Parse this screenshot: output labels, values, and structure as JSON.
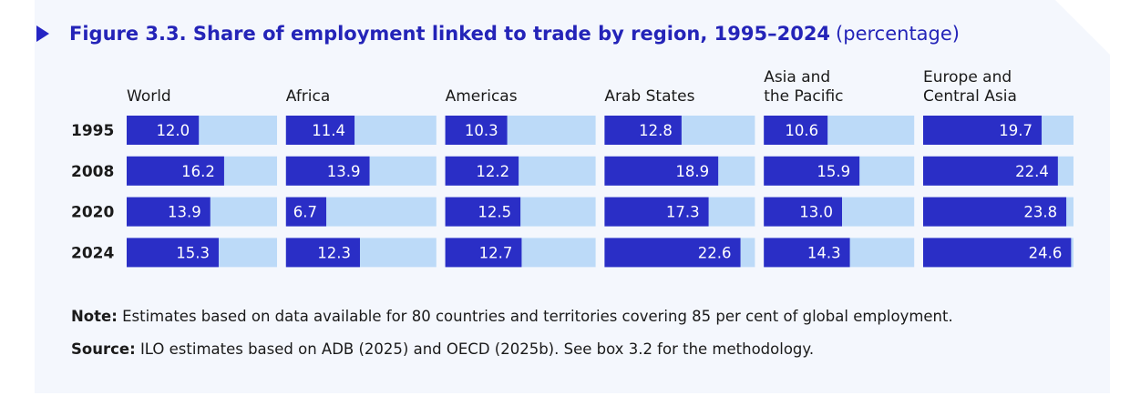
{
  "figure": {
    "title": "Figure 3.3. Share of employment linked to trade by region, 1995–2024",
    "unit": "(percentage)"
  },
  "notes": {
    "note_label": "Note:",
    "note_text": "Estimates based on data available for 80 countries and territories covering 85 per cent of global employment.",
    "source_label": "Source:",
    "source_text": "ILO estimates based on ADB (2025) and OECD (2025b). See box 3.2 for the methodology."
  },
  "colors": {
    "bar_fill": "#2a2ec6",
    "bar_track": "#bcdaf8",
    "title": "#2424b8",
    "value_text": "#ffffff",
    "label_text": "#1a1a1a"
  },
  "chart_data": {
    "type": "bar",
    "orientation": "horizontal",
    "layout": "small-multiples",
    "rows": [
      "1995",
      "2008",
      "2020",
      "2024"
    ],
    "xlim": [
      0,
      25
    ],
    "panels": [
      {
        "name": "World",
        "name_lines": [
          "World"
        ],
        "values": [
          12.0,
          16.2,
          13.9,
          15.3
        ]
      },
      {
        "name": "Africa",
        "name_lines": [
          "Africa"
        ],
        "values": [
          11.4,
          13.9,
          6.7,
          12.3
        ]
      },
      {
        "name": "Americas",
        "name_lines": [
          "Americas"
        ],
        "values": [
          10.3,
          12.2,
          12.5,
          12.7
        ]
      },
      {
        "name": "Arab States",
        "name_lines": [
          "Arab States"
        ],
        "values": [
          12.8,
          18.9,
          17.3,
          22.6
        ]
      },
      {
        "name": "Asia and the Pacific",
        "name_lines": [
          "Asia and",
          "the Pacific"
        ],
        "values": [
          10.6,
          15.9,
          13.0,
          14.3
        ]
      },
      {
        "name": "Europe and Central Asia",
        "name_lines": [
          "Europe and",
          "Central Asia"
        ],
        "values": [
          19.7,
          22.4,
          23.8,
          24.6
        ]
      }
    ]
  }
}
